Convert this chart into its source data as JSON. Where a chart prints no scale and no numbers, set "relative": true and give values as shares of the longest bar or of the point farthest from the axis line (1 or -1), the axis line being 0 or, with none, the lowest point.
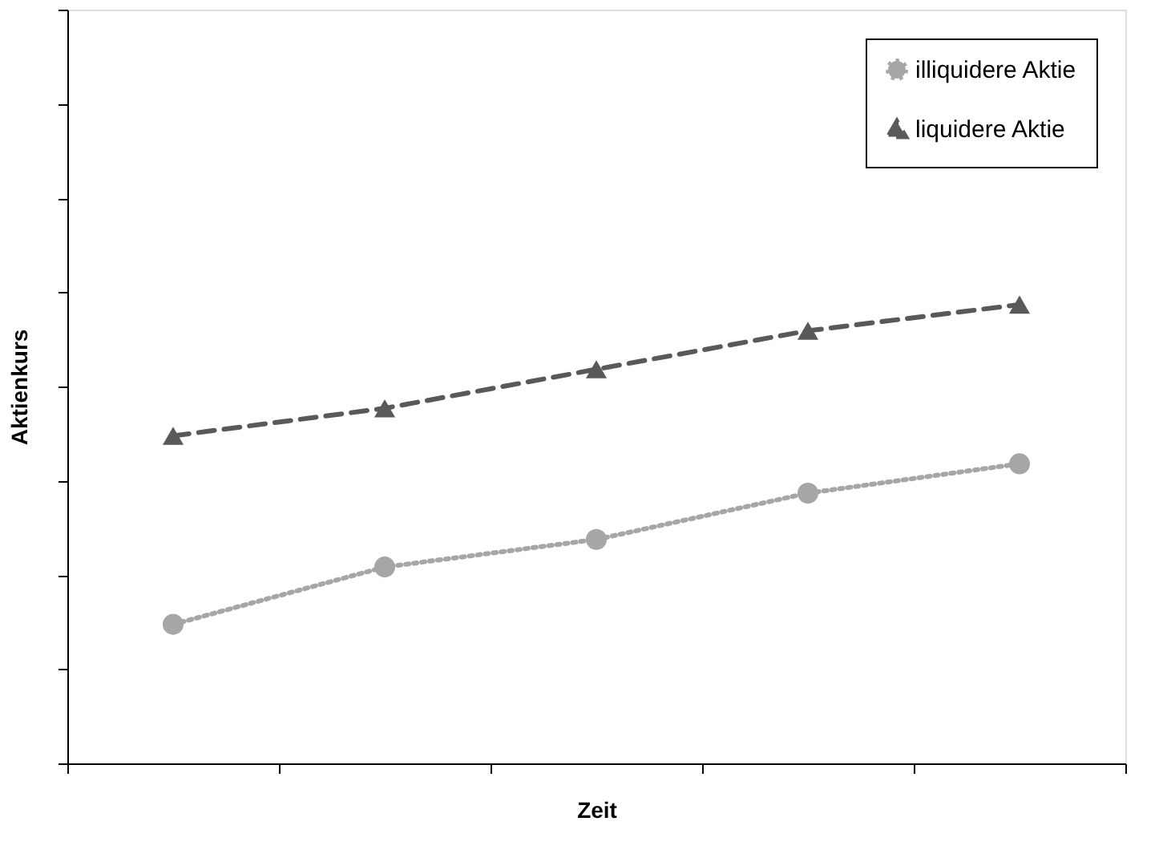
{
  "chart_data": {
    "type": "line",
    "xlabel": "Zeit",
    "ylabel": "Aktienkurs",
    "relative": true,
    "categories": [
      null,
      null,
      null,
      null,
      null
    ],
    "series": [
      {
        "name": "illiquidere Aktie",
        "color": "#a6a6a6",
        "values": [
          0.303,
          0.428,
          0.488,
          0.589,
          0.653
        ],
        "marker": "circle",
        "line_style": "dotted"
      },
      {
        "name": "liquidere Aktie",
        "color": "#595959",
        "values": [
          0.714,
          0.774,
          0.859,
          0.943,
          1
        ],
        "marker": "triangle",
        "line_style": "dashed"
      }
    ],
    "grid": false,
    "legend": "top right",
    "tick_labels": false
  }
}
